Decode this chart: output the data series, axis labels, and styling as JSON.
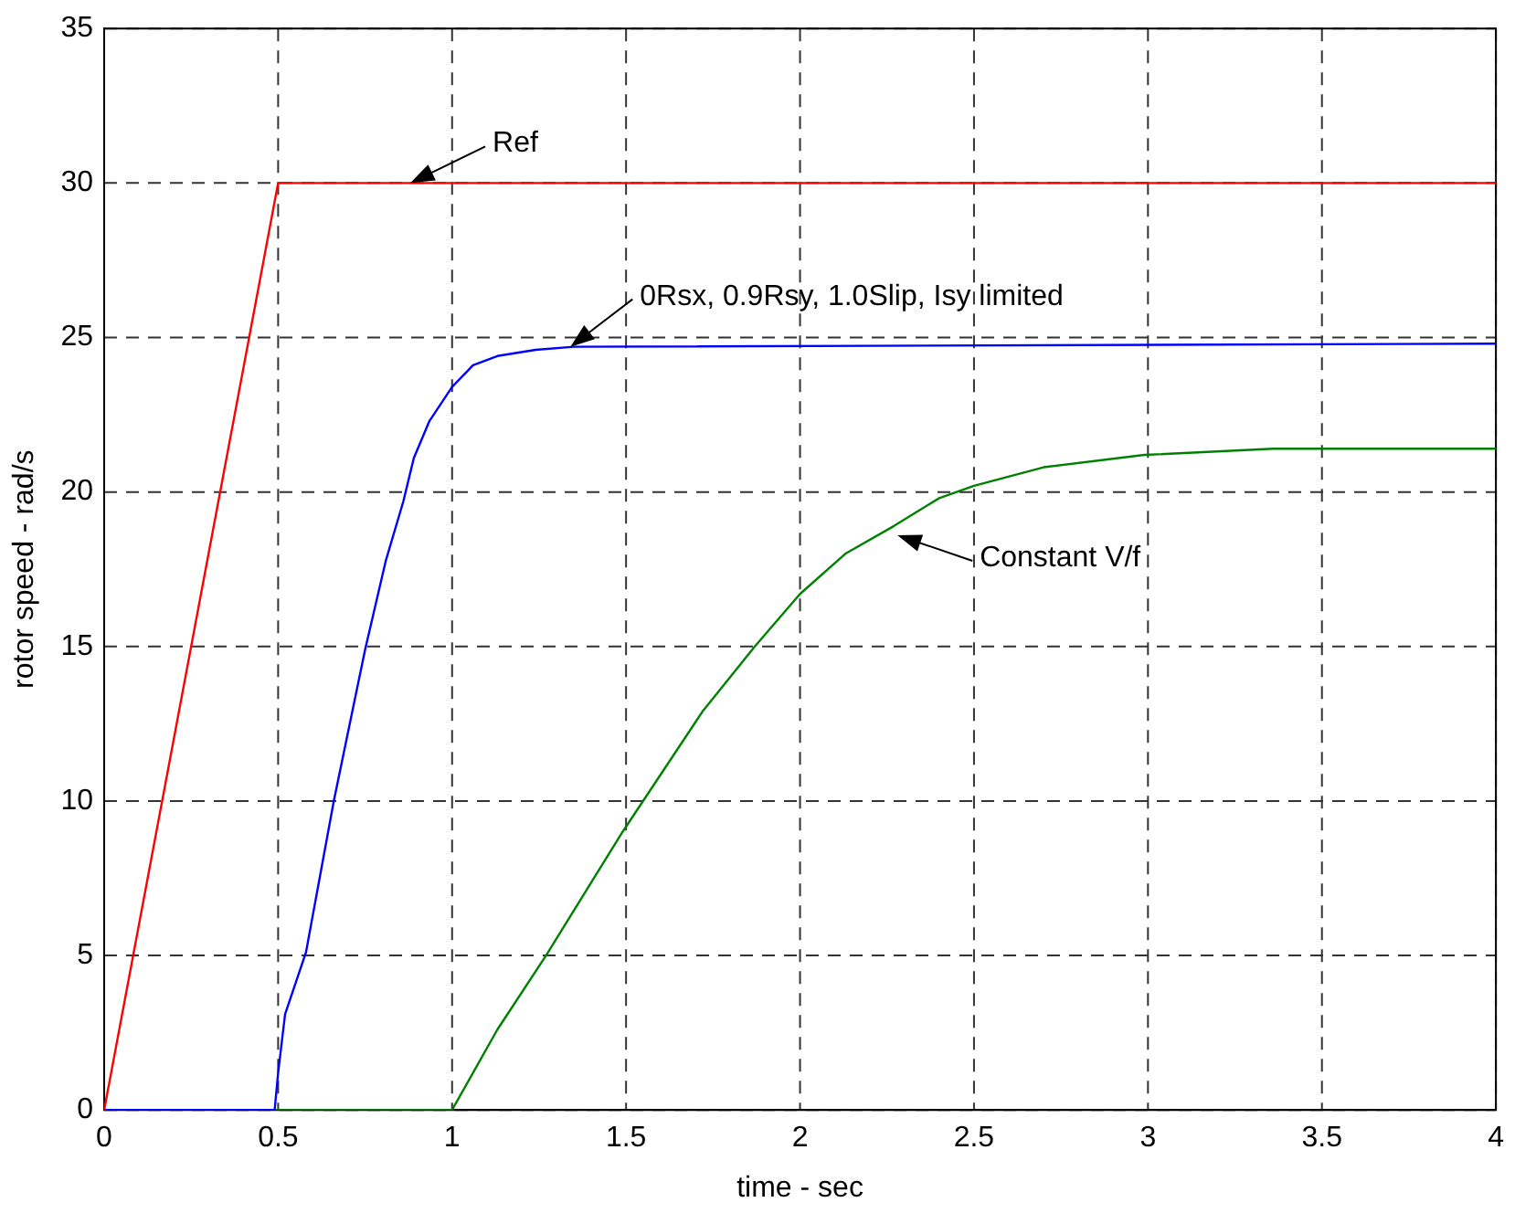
{
  "chart_data": {
    "type": "line",
    "xlabel": "time - sec",
    "ylabel": "rotor speed - rad/s",
    "xlim": [
      0,
      4
    ],
    "ylim": [
      0,
      35
    ],
    "xticks": [
      0,
      0.5,
      1,
      1.5,
      2,
      2.5,
      3,
      3.5,
      4
    ],
    "yticks": [
      0,
      5,
      10,
      15,
      20,
      25,
      30,
      35
    ],
    "grid": true,
    "legend": false,
    "marker": "none",
    "line_style": "solid",
    "series": [
      {
        "color": "#ff0000",
        "x": [
          0,
          0.5,
          4
        ],
        "values": [
          0,
          30,
          30
        ]
      },
      {
        "color": "#0000ff",
        "x": [
          0,
          0.49,
          0.5,
          0.52,
          0.58,
          0.66,
          0.75,
          0.81,
          0.86,
          0.89,
          0.935,
          1.0,
          1.06,
          1.13,
          1.24,
          1.35,
          4
        ],
        "values": [
          0,
          0,
          1.2,
          3.1,
          5.1,
          10,
          14.9,
          17.8,
          19.7,
          21.1,
          22.3,
          23.4,
          24.1,
          24.4,
          24.6,
          24.7,
          24.8
        ]
      },
      {
        "color": "#008000",
        "x": [
          0,
          1.0,
          1.13,
          1.27,
          1.49,
          1.72,
          1.87,
          2.0,
          2.13,
          2.27,
          2.4,
          2.5,
          2.7,
          2.99,
          3.36,
          4
        ],
        "values": [
          0,
          0,
          2.6,
          5,
          9,
          12.9,
          15,
          16.7,
          18,
          18.9,
          19.8,
          20.2,
          20.8,
          21.2,
          21.4,
          21.4
        ]
      }
    ],
    "annotations": [
      {
        "text": "Ref",
        "x": 0.88,
        "y": 30
      },
      {
        "text": "0Rsx, 0.9Rsy, 1.0Slip, Isy limited",
        "x": 1.34,
        "y": 24.7
      },
      {
        "text": "Constant V/f",
        "x": 2.28,
        "y": 18.6
      }
    ]
  }
}
